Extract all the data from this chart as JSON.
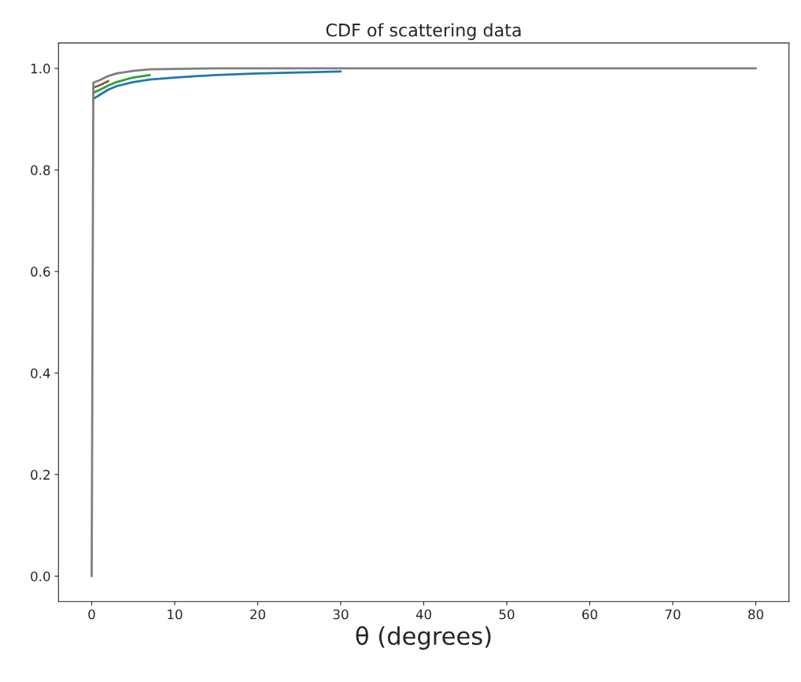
{
  "chart_data": {
    "type": "line",
    "title": "CDF of scattering data",
    "xlabel": "θ (degrees)",
    "x": [
      0,
      0.2,
      1,
      2,
      3,
      5,
      7,
      10,
      15,
      20,
      30,
      40,
      50,
      80
    ],
    "series": [
      {
        "color": "#1f77b4",
        "values": [
          null,
          0.94,
          0.948,
          0.958,
          0.965,
          0.973,
          0.978,
          0.982,
          0.987,
          0.99,
          0.994,
          null,
          null,
          null
        ]
      },
      {
        "color": "#2ca02c",
        "values": [
          null,
          0.952,
          0.958,
          0.966,
          0.973,
          0.982,
          0.987,
          null,
          null,
          null,
          null,
          null,
          null,
          null
        ]
      },
      {
        "color": "#8c564b",
        "values": [
          null,
          0.962,
          0.967,
          0.975,
          null,
          null,
          null,
          null,
          null,
          null,
          null,
          null,
          null,
          null
        ]
      },
      {
        "color": "#7f7f7f",
        "values": [
          0,
          0.972,
          0.977,
          0.985,
          0.99,
          0.995,
          0.998,
          0.999,
          1.0,
          1.0,
          1.0,
          1.0,
          1.0,
          1.0
        ]
      }
    ],
    "xlim": [
      -4,
      84
    ],
    "xticks": [
      0,
      10,
      20,
      30,
      40,
      50,
      60,
      70,
      80
    ],
    "ylim": [
      -0.05,
      1.05
    ],
    "yticks": [
      {
        "value": 0,
        "label": "0.0"
      },
      {
        "value": 0.2,
        "label": "0.2"
      },
      {
        "value": 0.4,
        "label": "0.4"
      },
      {
        "value": 0.6,
        "label": "0.6"
      },
      {
        "value": 0.8,
        "label": "0.8"
      },
      {
        "value": 1.0,
        "label": "1.0"
      }
    ],
    "grid": false
  }
}
